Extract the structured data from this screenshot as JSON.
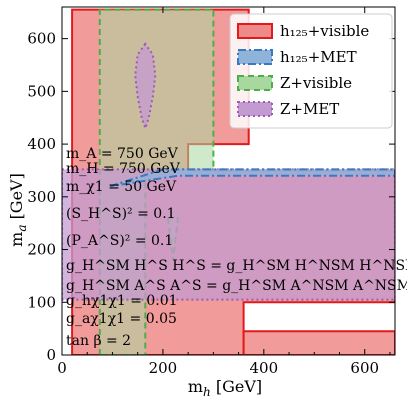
{
  "chart_data": {
    "type": "area",
    "xlabel": "m_h [GeV]",
    "ylabel": "m_a [GeV]",
    "xlim": [
      0,
      660
    ],
    "ylim": [
      0,
      660
    ],
    "xticks": [
      "0",
      "200",
      "400",
      "600"
    ],
    "yticks": [
      "0",
      "100",
      "200",
      "300",
      "400",
      "500",
      "600"
    ],
    "grid": false,
    "legend_position": "top-right",
    "legend": [
      {
        "name": "h125+visible",
        "label": "h₁₂₅+visible",
        "fill": "#ef8a8a",
        "edge": "#e31a1c",
        "dash": "solid"
      },
      {
        "name": "h125+MET",
        "label": "h₁₂₅+MET",
        "fill": "#8fb3d9",
        "edge": "#3a78c2",
        "dash": "dashdot"
      },
      {
        "name": "Z+visible",
        "label": "Z+visible",
        "fill": "#a8d8a0",
        "edge": "#4daf4a",
        "dash": "dashed"
      },
      {
        "name": "Z+MET",
        "label": "Z+MET",
        "fill": "#c49bd0",
        "edge": "#9c5bb5",
        "dash": "dotted"
      }
    ],
    "regions": {
      "h125+visible": [
        [
          [
            20,
            0
          ],
          [
            20,
            655
          ],
          [
            370,
            655
          ],
          [
            370,
            400
          ],
          [
            250,
            400
          ],
          [
            250,
            350
          ],
          [
            660,
            350
          ],
          [
            660,
            100
          ],
          [
            360,
            100
          ],
          [
            360,
            0
          ]
        ],
        [
          [
            360,
            45
          ],
          [
            660,
            45
          ],
          [
            660,
            0
          ],
          [
            360,
            0
          ]
        ]
      ],
      "Z+visible": [
        [
          [
            75,
            0
          ],
          [
            75,
            655
          ],
          [
            300,
            655
          ],
          [
            300,
            350
          ],
          [
            165,
            350
          ],
          [
            165,
            0
          ]
        ]
      ],
      "Z+visible_notch": [
        [
          [
            210,
            260
          ],
          [
            220,
            180
          ],
          [
            230,
            260
          ]
        ]
      ],
      "Z+MET": [
        [
          [
            0,
            105
          ],
          [
            0,
            352
          ],
          [
            660,
            352
          ],
          [
            660,
            105
          ]
        ],
        [
          [
            165,
            590
          ],
          [
            150,
            570
          ],
          [
            145,
            530
          ],
          [
            150,
            490
          ],
          [
            158,
            450
          ],
          [
            165,
            430
          ],
          [
            172,
            450
          ],
          [
            180,
            490
          ],
          [
            185,
            530
          ],
          [
            180,
            570
          ]
        ]
      ],
      "h125+MET": [
        [
          [
            95,
            320
          ],
          [
            200,
            352
          ],
          [
            660,
            352
          ],
          [
            660,
            340
          ],
          [
            230,
            340
          ]
        ]
      ]
    },
    "annotations": [
      "m_A = 750 GeV",
      "m_H = 750 GeV",
      "m_χ1 = 50 GeV",
      "(S_H^S)² = 0.1",
      "(P_A^S)² = 0.1",
      "g_H^SM H^S H^S = g_H^SM H^NSM H^NSM",
      "g_H^SM A^S A^S = g_H^SM A^NSM A^NSM",
      "g_hχ1χ1 = 0.01",
      "g_aχ1χ1 = 0.05",
      "tan β = 2"
    ]
  }
}
